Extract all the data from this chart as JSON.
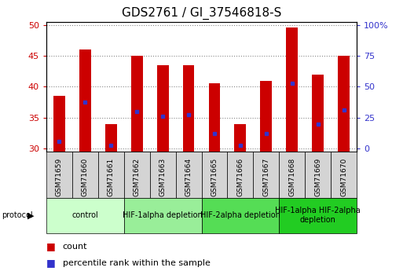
{
  "title": "GDS2761 / GI_37546818-S",
  "samples": [
    "GSM71659",
    "GSM71660",
    "GSM71661",
    "GSM71662",
    "GSM71663",
    "GSM71664",
    "GSM71665",
    "GSM71666",
    "GSM71667",
    "GSM71668",
    "GSM71669",
    "GSM71670"
  ],
  "counts": [
    38.5,
    46.0,
    34.0,
    45.0,
    43.5,
    43.5,
    40.5,
    34.0,
    41.0,
    49.5,
    42.0,
    45.0
  ],
  "percentile_ranks": [
    31.2,
    37.5,
    30.5,
    36.0,
    35.2,
    35.5,
    32.5,
    30.5,
    32.5,
    40.5,
    34.0,
    36.2
  ],
  "ylim_left": [
    29.5,
    50.5
  ],
  "yticks_left": [
    30,
    35,
    40,
    45,
    50
  ],
  "yticks_right_labels": [
    "0",
    "25",
    "50",
    "75",
    "100%"
  ],
  "yticks_right_vals": [
    30,
    35,
    40,
    45,
    50
  ],
  "bar_color": "#cc0000",
  "dot_color": "#3333cc",
  "bar_width": 0.45,
  "groups": [
    {
      "label": "control",
      "span": [
        0,
        2
      ],
      "color": "#ccffcc"
    },
    {
      "label": "HIF-1alpha depletion",
      "span": [
        3,
        5
      ],
      "color": "#99ee99"
    },
    {
      "label": "HIF-2alpha depletion",
      "span": [
        6,
        8
      ],
      "color": "#55dd55"
    },
    {
      "label": "HIF-1alpha HIF-2alpha\ndepletion",
      "span": [
        9,
        11
      ],
      "color": "#22cc22"
    }
  ],
  "cell_bg": "#d4d4d4",
  "plot_bg": "#ffffff",
  "grid_color": "#888888",
  "legend_count_color": "#cc0000",
  "legend_pct_color": "#3333cc",
  "title_fontsize": 11,
  "tick_fontsize": 8,
  "sample_fontsize": 6.5,
  "group_fontsize": 7,
  "legend_fontsize": 8
}
